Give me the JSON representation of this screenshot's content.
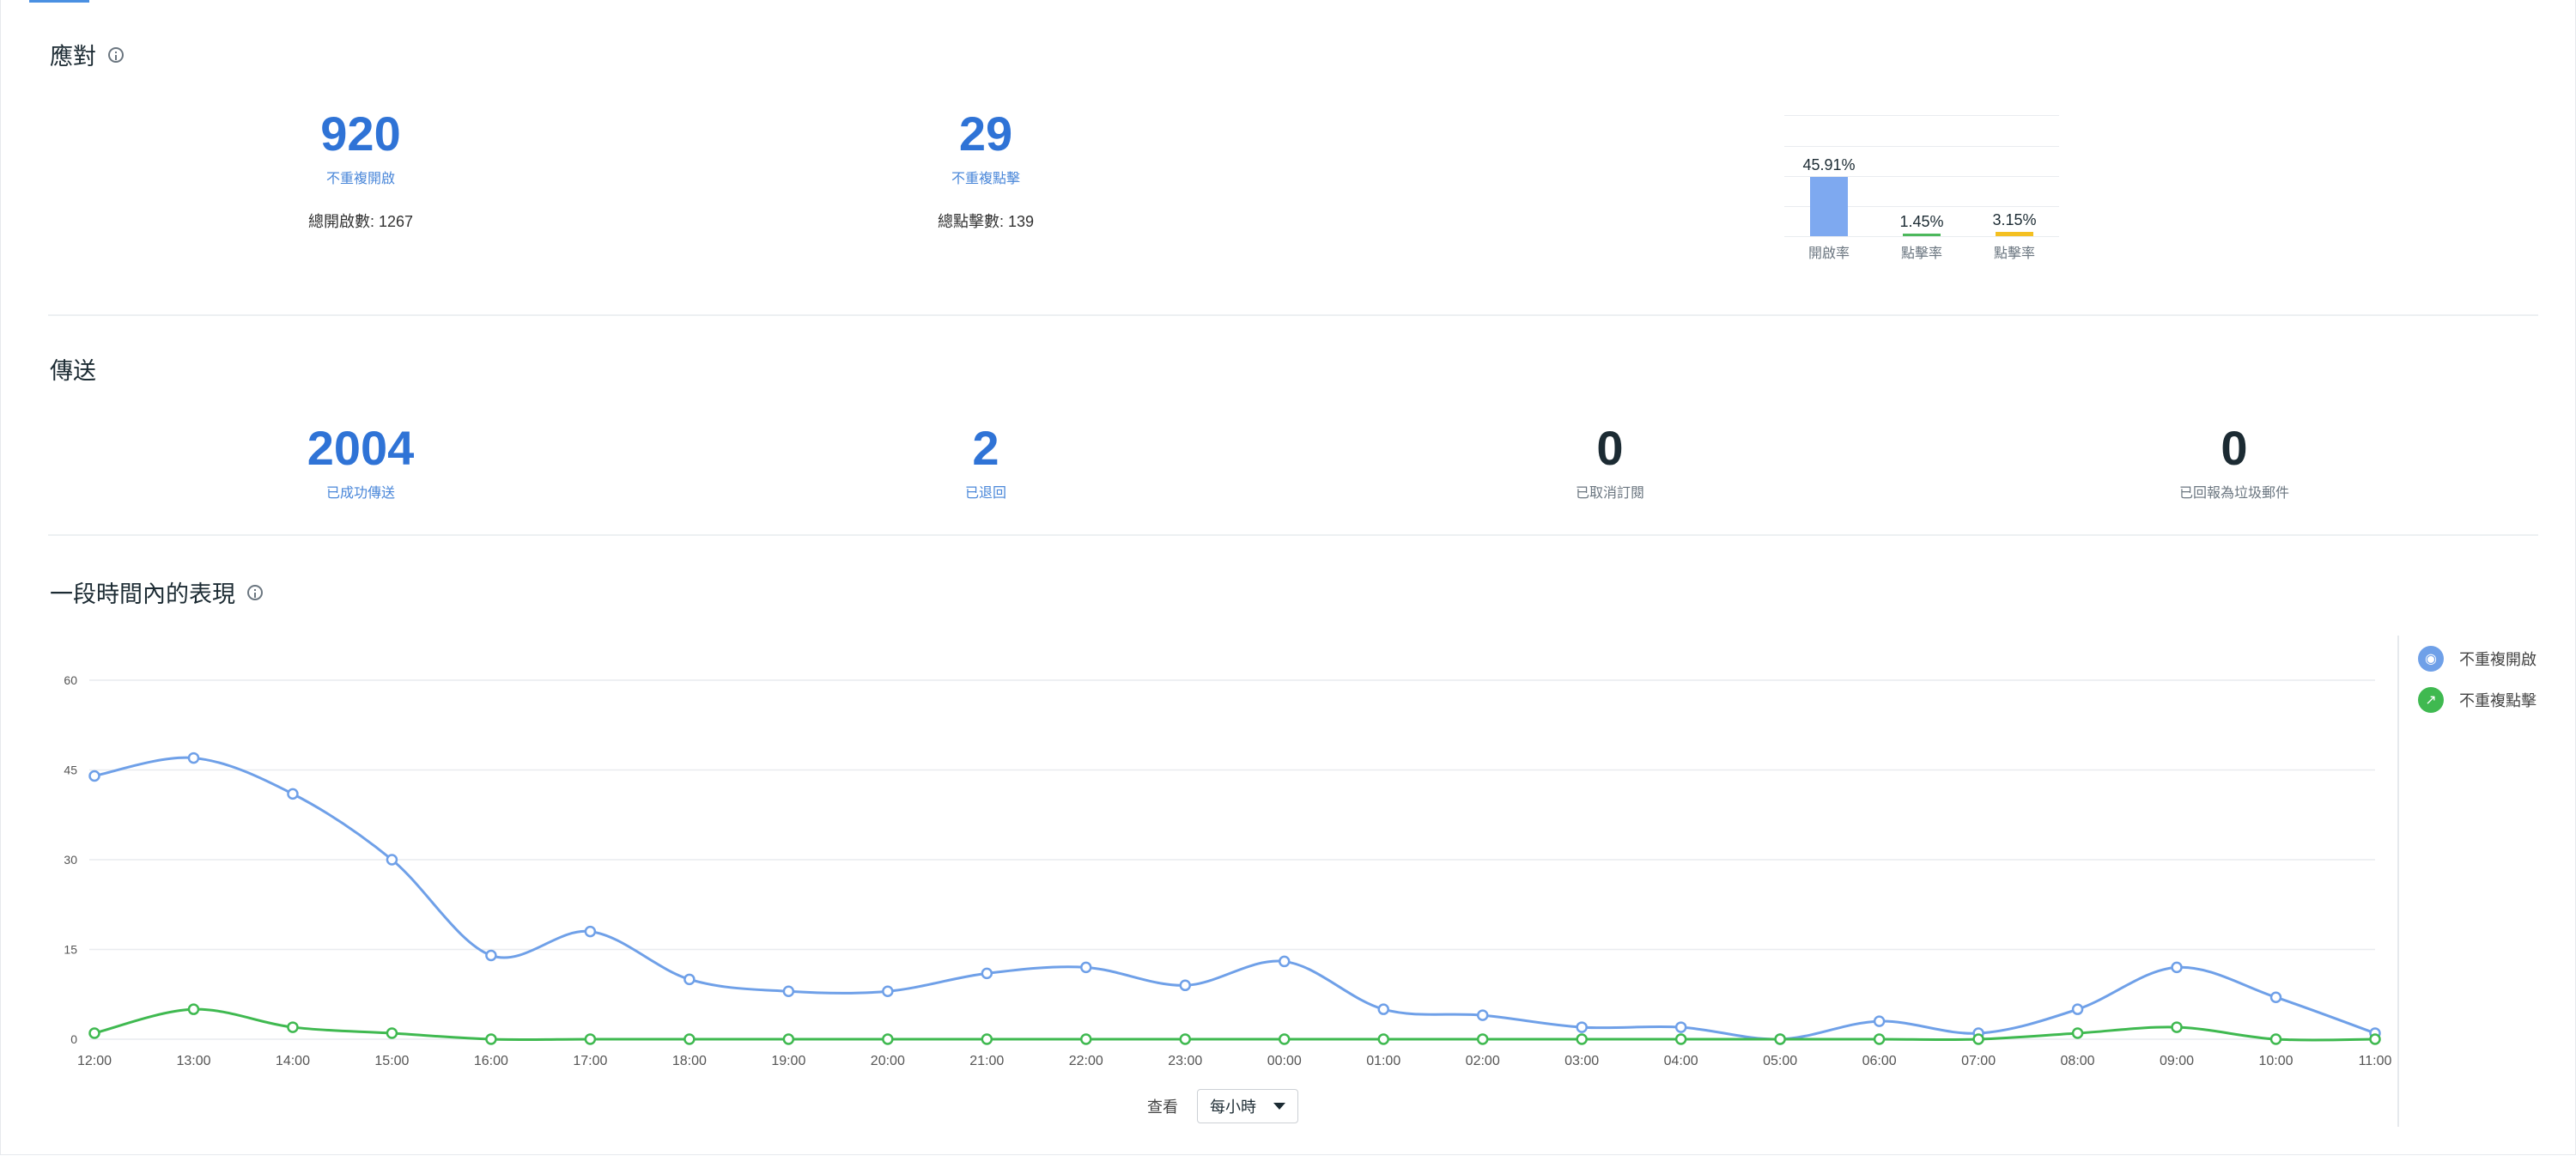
{
  "response": {
    "title": "應對",
    "metrics": [
      {
        "value": "920",
        "label": "不重複開啟",
        "total_label": "總開啟數",
        "total_value": "1267"
      },
      {
        "value": "29",
        "label": "不重複點擊",
        "total_label": "總點擊數",
        "total_value": "139"
      }
    ]
  },
  "rate_chart": {
    "type": "bar",
    "categories": [
      "開啟率",
      "點擊率",
      "點擊率"
    ],
    "values": [
      45.91,
      1.45,
      3.15
    ],
    "value_labels": [
      "45.91%",
      "1.45%",
      "3.15%"
    ],
    "colors": [
      "#7ea9f0",
      "#4cb85c",
      "#f4c021"
    ]
  },
  "delivery": {
    "title": "傳送",
    "metrics": [
      {
        "value": "2004",
        "label": "已成功傳送",
        "style": "blue"
      },
      {
        "value": "2",
        "label": "已退回",
        "style": "blue"
      },
      {
        "value": "0",
        "label": "已取消訂閱",
        "style": "dark"
      },
      {
        "value": "0",
        "label": "已回報為垃圾郵件",
        "style": "dark"
      }
    ]
  },
  "performance": {
    "title": "一段時間內的表現",
    "view_label": "查看",
    "view_option": "每小時"
  },
  "chart_data": {
    "type": "line",
    "x": [
      "12:00",
      "13:00",
      "14:00",
      "15:00",
      "16:00",
      "17:00",
      "18:00",
      "19:00",
      "20:00",
      "21:00",
      "22:00",
      "23:00",
      "00:00",
      "01:00",
      "02:00",
      "03:00",
      "04:00",
      "05:00",
      "06:00",
      "07:00",
      "08:00",
      "09:00",
      "10:00",
      "11:00"
    ],
    "yticks": [
      0,
      15,
      30,
      45,
      60
    ],
    "ylim": [
      0,
      60
    ],
    "grid": true,
    "legend_position": "right",
    "series": [
      {
        "name": "不重複開啟",
        "color": "#6fa0e8",
        "icon": "eye-icon",
        "values": [
          44,
          47,
          41,
          30,
          14,
          18,
          10,
          8,
          8,
          11,
          12,
          9,
          13,
          5,
          4,
          2,
          2,
          0,
          3,
          1,
          5,
          12,
          7,
          1
        ]
      },
      {
        "name": "不重複點擊",
        "color": "#3fb950",
        "icon": "pointer-icon",
        "values": [
          1,
          5,
          2,
          1,
          0,
          0,
          0,
          0,
          0,
          0,
          0,
          0,
          0,
          0,
          0,
          0,
          0,
          0,
          0,
          0,
          1,
          2,
          0,
          0
        ]
      }
    ]
  }
}
